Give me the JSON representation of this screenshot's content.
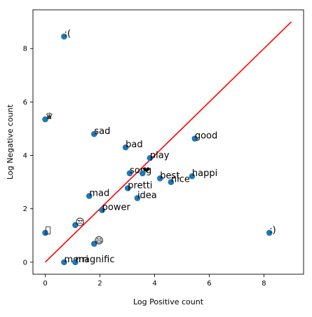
{
  "chart_data": {
    "type": "scatter",
    "title": "",
    "xlabel": "Log Positive count",
    "ylabel": "Log Negative count",
    "xlim": [
      -0.45,
      9.45
    ],
    "ylim": [
      -0.45,
      9.45
    ],
    "xticks": [
      0,
      2,
      4,
      6,
      8
    ],
    "yticks": [
      0,
      2,
      4,
      6,
      8
    ],
    "grid": false,
    "point_color": "#1f77b4",
    "line_color": "#ff0000",
    "reference_line": {
      "x": [
        0,
        9
      ],
      "y": [
        0,
        9
      ]
    },
    "points": [
      {
        "label": ":(",
        "x": 0.69,
        "y": 8.45
      },
      {
        "label": "♛",
        "x": 0.0,
        "y": 5.35
      },
      {
        "label": "sad",
        "x": 1.79,
        "y": 4.8
      },
      {
        "label": "bad",
        "x": 2.94,
        "y": 4.3
      },
      {
        "label": "play",
        "x": 3.83,
        "y": 3.9
      },
      {
        "label": "good",
        "x": 5.47,
        "y": 4.63
      },
      {
        "label": "song",
        "x": 3.09,
        "y": 3.33
      },
      {
        "label": "❤",
        "x": 3.56,
        "y": 3.33
      },
      {
        "label": "best",
        "x": 4.2,
        "y": 3.14
      },
      {
        "label": "nice",
        "x": 4.6,
        "y": 3.0
      },
      {
        "label": "happi",
        "x": 5.37,
        "y": 3.22
      },
      {
        "label": "pretti",
        "x": 3.02,
        "y": 2.77
      },
      {
        "label": "mad",
        "x": 1.61,
        "y": 2.48
      },
      {
        "label": "idea",
        "x": 3.37,
        "y": 2.4
      },
      {
        "label": "power",
        "x": 2.08,
        "y": 1.95
      },
      {
        "label": "😒",
        "x": 1.1,
        "y": 1.39
      },
      {
        "label": "􀀁",
        "x": 0.0,
        "y": 1.1
      },
      {
        "label": ":)",
        "x": 8.2,
        "y": 1.1
      },
      {
        "label": "😄",
        "x": 1.79,
        "y": 0.69
      },
      {
        "label": "merri",
        "x": 0.69,
        "y": 0.0
      },
      {
        "label": "magnific",
        "x": 1.1,
        "y": 0.0
      }
    ]
  }
}
